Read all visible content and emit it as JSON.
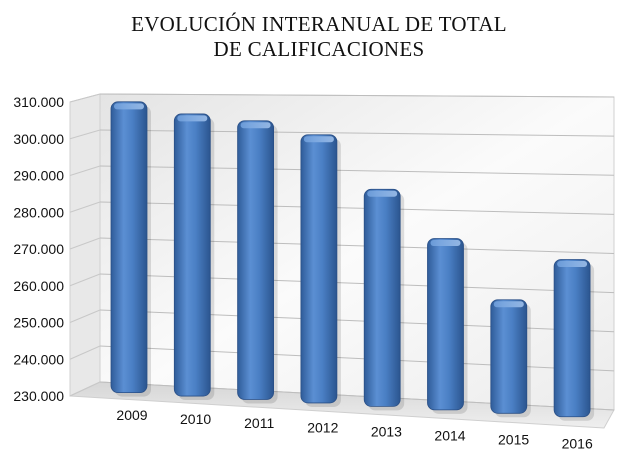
{
  "chart_data": {
    "type": "bar",
    "title_line1": "EVOLUCIÓN INTERANUAL DE TOTAL",
    "title_line2": "DE CALIFICACIONES",
    "xlabel": "",
    "ylabel": "",
    "categories": [
      "2009",
      "2010",
      "2011",
      "2012",
      "2013",
      "2014",
      "2015",
      "2016"
    ],
    "values": [
      308400,
      305200,
      303500,
      299900,
      285600,
      273000,
      257500,
      268500
    ],
    "ylim": [
      230000,
      310000
    ],
    "yticks": [
      230000,
      240000,
      250000,
      260000,
      270000,
      280000,
      290000,
      300000,
      310000
    ],
    "ytick_labels": [
      "230.000",
      "240.000",
      "250.000",
      "260.000",
      "270.000",
      "280.000",
      "290.000",
      "300.000",
      "310.000"
    ],
    "grid": true,
    "legend": "none",
    "bar_color": "#4a7fc4",
    "bar_color_dark": "#2f5c99",
    "bar_color_light": "#8fb3e3"
  }
}
